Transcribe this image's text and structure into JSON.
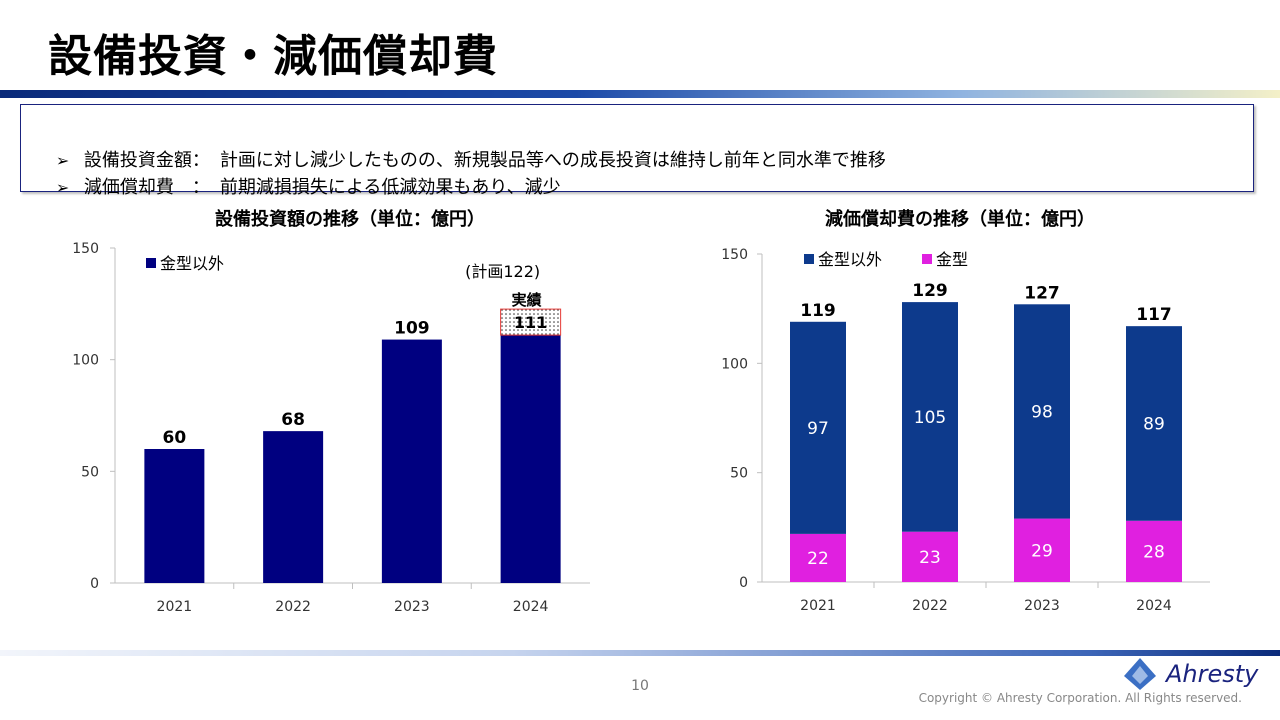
{
  "page_title": "設備投資・減価償却費",
  "summary": [
    {
      "label": "設備投資金額：",
      "text": "計画に対し減少したものの、新規製品等への成長投資は維持し前年と同水準で推移"
    },
    {
      "label": "減価償却費　：",
      "text": "前期減損損失による低減効果もあり、減少"
    }
  ],
  "colors": {
    "navy_bar": "#000080",
    "navy_stack": "#0d3a8c",
    "magenta": "#e020e0",
    "plan_outline": "#e53935"
  },
  "chart_data": [
    {
      "type": "bar",
      "title": "設備投資額の推移（単位：億円）",
      "categories": [
        "2021",
        "2022",
        "2023",
        "2024"
      ],
      "series": [
        {
          "name": "金型以外",
          "values": [
            60,
            68,
            109,
            111
          ]
        }
      ],
      "ylim": [
        0,
        150
      ],
      "yticks": [
        0,
        50,
        100,
        150
      ],
      "legend_position": "top-left",
      "annotations": {
        "plan_label": "(計画122)",
        "actual_label": "実績",
        "actual_value": "111"
      }
    },
    {
      "type": "bar",
      "stacked": true,
      "title": "減価償却費の推移（単位：億円）",
      "categories": [
        "2021",
        "2022",
        "2023",
        "2024"
      ],
      "series": [
        {
          "name": "金型",
          "values": [
            22,
            23,
            29,
            28
          ]
        },
        {
          "name": "金型以外",
          "values": [
            97,
            105,
            98,
            89
          ]
        }
      ],
      "totals": [
        119,
        129,
        127,
        117
      ],
      "ylim": [
        0,
        150
      ],
      "yticks": [
        0,
        50,
        100,
        150
      ],
      "legend_position": "top-left"
    }
  ],
  "footer": {
    "page_number": "10",
    "logo_text": "Ahresty",
    "copyright": "Copyright © Ahresty Corporation. All Rights reserved."
  }
}
